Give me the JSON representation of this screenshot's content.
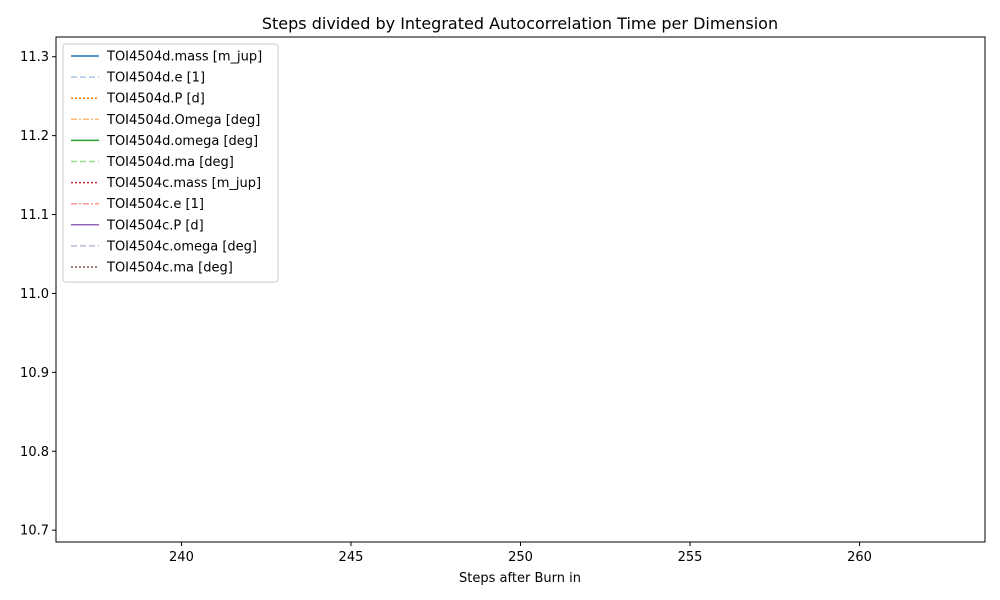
{
  "chart_data": {
    "type": "line",
    "title": "Steps divided by Integrated Autocorrelation Time per Dimension",
    "xlabel": "Steps after Burn in",
    "ylabel": "",
    "xlim": [
      236.3,
      263.7
    ],
    "ylim": [
      10.685,
      11.325
    ],
    "xticks": [
      240,
      245,
      250,
      255,
      260
    ],
    "yticks": [
      10.7,
      10.8,
      10.9,
      11.0,
      11.1,
      11.2,
      11.3
    ],
    "xtick_labels": [
      "240",
      "245",
      "250",
      "255",
      "260"
    ],
    "ytick_labels": [
      "10.7",
      "10.8",
      "10.9",
      "11.0",
      "11.1",
      "11.2",
      "11.3"
    ],
    "grid": false,
    "legend_position": "top-left",
    "series": [
      {
        "name": "TOI4504d.mass [m_jup]",
        "color": "#1f77b4",
        "dash": "solid",
        "x": [],
        "y": []
      },
      {
        "name": "TOI4504d.e [1]",
        "color": "#aec7e8",
        "dash": "dashed",
        "x": [],
        "y": []
      },
      {
        "name": "TOI4504d.P [d]",
        "color": "#ff7f0e",
        "dash": "dotted",
        "x": [],
        "y": []
      },
      {
        "name": "TOI4504d.Omega [deg]",
        "color": "#ffbb78",
        "dash": "dashdot",
        "x": [],
        "y": []
      },
      {
        "name": "TOI4504d.omega [deg]",
        "color": "#2ca02c",
        "dash": "solid",
        "x": [],
        "y": []
      },
      {
        "name": "TOI4504d.ma [deg]",
        "color": "#98df8a",
        "dash": "dashed",
        "x": [],
        "y": []
      },
      {
        "name": "TOI4504c.mass [m_jup]",
        "color": "#d62728",
        "dash": "dotted",
        "x": [],
        "y": []
      },
      {
        "name": "TOI4504c.e [1]",
        "color": "#ff9896",
        "dash": "dashdot",
        "x": [],
        "y": []
      },
      {
        "name": "TOI4504c.P [d]",
        "color": "#9467bd",
        "dash": "solid",
        "x": [],
        "y": []
      },
      {
        "name": "TOI4504c.omega [deg]",
        "color": "#c5b0d5",
        "dash": "dashed",
        "x": [],
        "y": []
      },
      {
        "name": "TOI4504c.ma [deg]",
        "color": "#8c564b",
        "dash": "dotted",
        "x": [],
        "y": []
      }
    ]
  }
}
